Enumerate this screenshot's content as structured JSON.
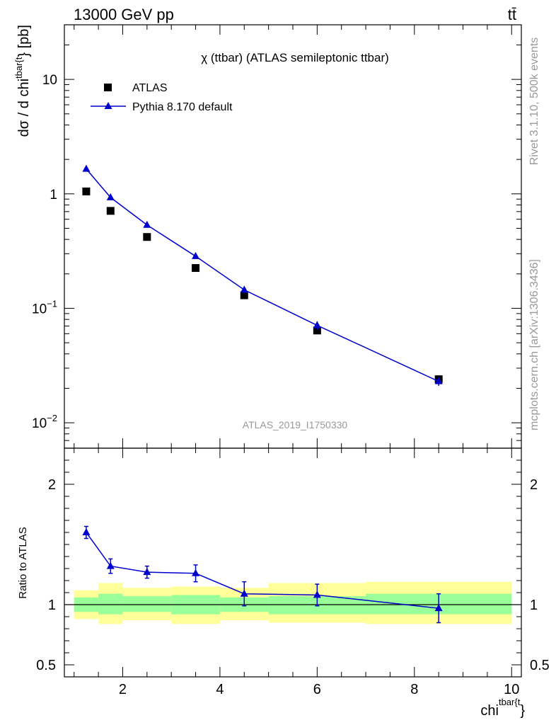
{
  "header": {
    "energy_label": "13000 GeV pp",
    "process_label": "tt̄"
  },
  "side_labels": {
    "rivet": "Rivet 3.1.10,  500k events",
    "source": "mcplots.cern.ch [arXiv:1306.3436]"
  },
  "watermark": "ATLAS_2019_I1750330",
  "chart_data": [
    {
      "type": "scatter",
      "title": "χ (ttbar) (ATLAS semileptonic ttbar)",
      "ylabel": "dσ / d chi",
      "ylabel_sup": "tbar{t",
      "ylabel_tail": "} [pb]",
      "yscale": "log",
      "ylim": [
        0.006,
        30
      ],
      "xlim": [
        0.8,
        10.2
      ],
      "x_ticks": [
        2,
        4,
        6,
        8,
        10
      ],
      "y_ticks": [
        {
          "value": 10,
          "label": "10"
        },
        {
          "value": 1,
          "label": "1"
        },
        {
          "value": 0.1,
          "label": "10",
          "sup": "−1"
        },
        {
          "value": 0.01,
          "label": "10",
          "sup": "−2"
        }
      ],
      "legend_position": "top-left",
      "colors": {
        "data": "#000000",
        "mc": "#0000cc"
      },
      "series": [
        {
          "name": "ATLAS",
          "marker": "square",
          "x": [
            1.25,
            1.75,
            2.5,
            3.5,
            4.5,
            6.0,
            8.5
          ],
          "y": [
            1.05,
            0.71,
            0.42,
            0.225,
            0.13,
            0.064,
            0.024
          ]
        },
        {
          "name": "Pythia 8.170 default",
          "marker": "triangle",
          "x": [
            1.25,
            1.75,
            2.5,
            3.5,
            4.5,
            6.0,
            8.5
          ],
          "y": [
            1.65,
            0.93,
            0.535,
            0.285,
            0.145,
            0.071,
            0.023
          ],
          "yerr": [
            0.02,
            0.01,
            0.008,
            0.005,
            0.01,
            0.006,
            0.002
          ]
        }
      ]
    },
    {
      "type": "scatter",
      "ylabel": "Ratio to ATLAS",
      "xlabel": "chi",
      "xlabel_sup": "tbar{t",
      "xlabel_tail": "}",
      "ylim": [
        0.4,
        2.3
      ],
      "xlim": [
        0.8,
        10.2
      ],
      "x_ticks": [
        2,
        4,
        6,
        8,
        10
      ],
      "y_ticks": [
        {
          "value": 2,
          "label": "2"
        },
        {
          "value": 1,
          "label": "1"
        },
        {
          "value": 0.5,
          "label": "0.5"
        }
      ],
      "bins": [
        {
          "lo": 1.0,
          "hi": 1.5,
          "inner": [
            0.94,
            1.06
          ],
          "outer": [
            0.88,
            1.12
          ]
        },
        {
          "lo": 1.5,
          "hi": 2.0,
          "inner": [
            0.92,
            1.09
          ],
          "outer": [
            0.84,
            1.18
          ]
        },
        {
          "lo": 2.0,
          "hi": 3.0,
          "inner": [
            0.94,
            1.07
          ],
          "outer": [
            0.87,
            1.14
          ]
        },
        {
          "lo": 3.0,
          "hi": 4.0,
          "inner": [
            0.92,
            1.08
          ],
          "outer": [
            0.84,
            1.15
          ]
        },
        {
          "lo": 4.0,
          "hi": 5.0,
          "inner": [
            0.94,
            1.06
          ],
          "outer": [
            0.87,
            1.14
          ]
        },
        {
          "lo": 5.0,
          "hi": 7.0,
          "inner": [
            0.92,
            1.07
          ],
          "outer": [
            0.85,
            1.18
          ]
        },
        {
          "lo": 7.0,
          "hi": 10.0,
          "inner": [
            0.92,
            1.09
          ],
          "outer": [
            0.84,
            1.19
          ]
        }
      ],
      "series": [
        {
          "name": "Pythia 8.170 default",
          "x": [
            1.25,
            1.75,
            2.5,
            3.5,
            4.5,
            6.0,
            8.5
          ],
          "y": [
            1.6,
            1.32,
            1.27,
            1.26,
            1.09,
            1.08,
            0.97
          ],
          "yerr": [
            0.05,
            0.06,
            0.05,
            0.07,
            0.1,
            0.09,
            0.12
          ]
        }
      ]
    }
  ]
}
